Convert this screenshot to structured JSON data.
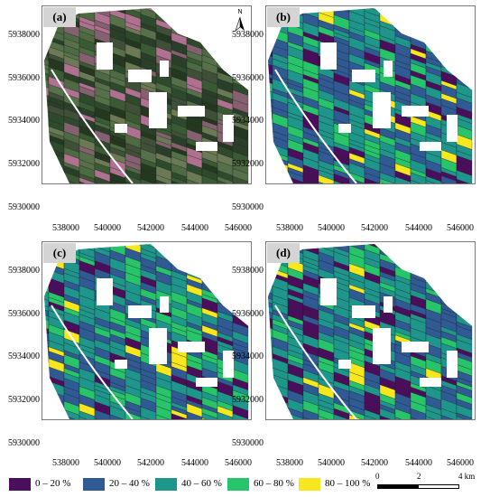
{
  "figure": {
    "panels": [
      {
        "label": "(a)",
        "kind": "rgb"
      },
      {
        "label": "(b)",
        "kind": "class"
      },
      {
        "label": "(c)",
        "kind": "class"
      },
      {
        "label": "(d)",
        "kind": "class"
      }
    ],
    "y_ticks": [
      "5938000",
      "5936000",
      "5934000",
      "5932000",
      "5930000"
    ],
    "x_ticks": [
      "538000",
      "540000",
      "542000",
      "544000",
      "546000"
    ],
    "north_arrow": {
      "label": "N",
      "icon": "north-arrow-icon"
    }
  },
  "legend": {
    "items": [
      {
        "label": "0 – 20 %",
        "color": "#4b0e5c"
      },
      {
        "label": "20 – 40 %",
        "color": "#2f5a94"
      },
      {
        "label": "40 – 60 %",
        "color": "#1f968c"
      },
      {
        "label": "60 – 80 %",
        "color": "#28c46a"
      },
      {
        "label": "80 – 100 %",
        "color": "#f7e71f"
      }
    ]
  },
  "scale_bar": {
    "labels": [
      "0",
      "2",
      "4 km"
    ]
  }
}
